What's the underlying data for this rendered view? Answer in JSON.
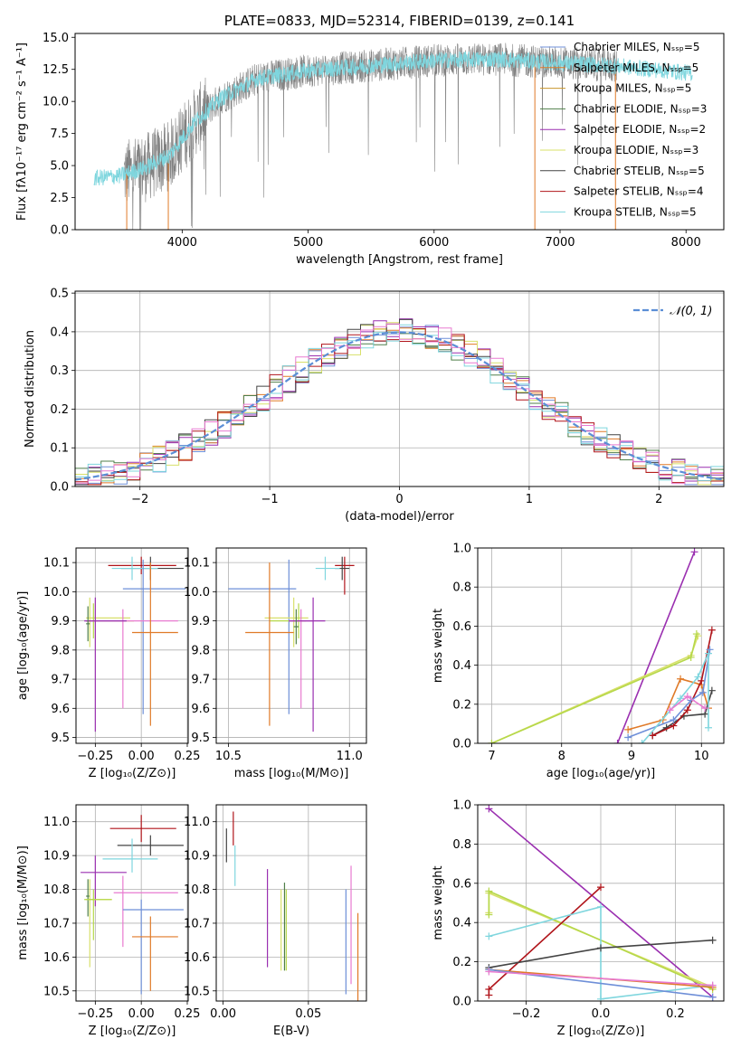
{
  "colors": {
    "Chabrier MILES": "#6e8fd8",
    "Salpeter MILES": "#e07a28",
    "Kroupa MILES": "#c9962b",
    "Chabrier ELODIE": "#4f7f4a",
    "Salpeter ELODIE": "#9a2fb0",
    "Kroupa ELODIE": "#d8e06a",
    "Chabrier STELIB": "#444444",
    "Salpeter STELIB": "#b0141a",
    "Kroupa STELIB": "#7fd6de",
    "extra_pink": "#e87ad0",
    "extra_lime": "#b6d84a",
    "gray": "#808080",
    "normal": "#5b8ed6"
  },
  "chart_data": [
    {
      "id": "spectrum",
      "type": "line",
      "title": "PLATE=0833, MJD=52314, FIBERID=0139, z=0.141",
      "xlabel": "wavelength [Angstrom, rest frame]",
      "ylabel": "Flux [fλ10⁻¹⁷ erg cm⁻² s⁻¹ A⁻¹]",
      "xlim": [
        3150,
        8300
      ],
      "ylim": [
        0,
        15.3
      ],
      "xticks": [
        4000,
        5000,
        6000,
        7000,
        8000
      ],
      "yticks": [
        0.0,
        2.5,
        5.0,
        7.5,
        10.0,
        12.5,
        15.0
      ],
      "grid": false,
      "legend": [
        "Chabrier MILES, Nₛₛₚ=5",
        "Salpeter MILES, Nₛₛₚ=5",
        "Kroupa MILES, Nₛₛₚ=5",
        "Chabrier ELODIE, Nₛₛₚ=3",
        "Salpeter ELODIE, Nₛₛₚ=2",
        "Kroupa ELODIE, Nₛₛₚ=3",
        "Chabrier STELIB, Nₛₛₚ=5",
        "Salpeter STELIB, Nₛₛₚ=4",
        "Kroupa STELIB, Nₛₛₚ=5"
      ],
      "legend_position": "right",
      "continuum": {
        "x": [
          3300,
          3500,
          3700,
          3900,
          4100,
          4300,
          4600,
          5000,
          5500,
          6000,
          6500,
          7000,
          7400,
          8050
        ],
        "y": [
          4.0,
          4.2,
          4.8,
          5.8,
          8.4,
          10.2,
          11.8,
          12.4,
          12.8,
          13.2,
          13.3,
          13.0,
          12.8,
          12.2
        ]
      },
      "model_range": [
        3300,
        8050
      ],
      "observed_range": [
        3540,
        7450
      ]
    },
    {
      "id": "residuals",
      "type": "histogram",
      "xlabel": "(data-model)/error",
      "ylabel": "Normed distribution",
      "xlim": [
        -2.5,
        2.5
      ],
      "ylim": [
        0,
        0.505
      ],
      "xticks": [
        -2,
        -1,
        0,
        1,
        2
      ],
      "xtick_labels": [
        "−2",
        "−1",
        "0",
        "1",
        "2"
      ],
      "yticks": [
        0.0,
        0.1,
        0.2,
        0.3,
        0.4,
        0.5
      ],
      "grid": true,
      "bin_width": 0.1,
      "legend": "𝒩(0, 1)",
      "legend_position": "top-right",
      "normal": {
        "mean": 0,
        "sigma": 1
      }
    },
    {
      "id": "age_vs_Z",
      "type": "errorbar",
      "xlabel": "Z [log₁₀(Z/Z⊙)]",
      "ylabel": "age  [log₁₀(age/yr)]",
      "xlim": [
        -0.355,
        0.255
      ],
      "ylim": [
        9.48,
        10.15
      ],
      "xticks": [
        -0.25,
        0.0,
        0.25
      ],
      "xtick_labels": [
        "−0.25",
        "0.00",
        "0.25"
      ],
      "yticks": [
        9.5,
        9.6,
        9.7,
        9.8,
        9.9,
        10.0,
        10.1
      ],
      "grid": true,
      "points": [
        {
          "model": "Salpeter STELIB",
          "x": 0.0,
          "xerr": [
            0.18,
            0.19
          ],
          "y": 10.09,
          "yerr": [
            0.03,
            0.03
          ]
        },
        {
          "model": "Chabrier STELIB",
          "x": 0.05,
          "xerr": [
            0.16,
            0.18
          ],
          "y": 10.08,
          "yerr": [
            0.04,
            0.04
          ]
        },
        {
          "model": "Kroupa STELIB",
          "x": -0.05,
          "xerr": [
            0.11,
            0.14
          ],
          "y": 10.08,
          "yerr": [
            0.04,
            0.04
          ]
        },
        {
          "model": "Chabrier MILES",
          "x": 0.01,
          "xerr": [
            0.11,
            0.23
          ],
          "y": 10.01,
          "yerr": [
            0.43,
            0.1
          ]
        },
        {
          "model": "Kroupa ELODIE",
          "x": -0.28,
          "xerr": [
            0.02,
            0.22
          ],
          "y": 9.91,
          "yerr": [
            0.1,
            0.07
          ]
        },
        {
          "model": "extra_lime",
          "x": -0.26,
          "xerr": [
            0.04,
            0.22
          ],
          "y": 9.9,
          "yerr": [
            0.06,
            0.06
          ]
        },
        {
          "model": "extra_pink",
          "x": -0.1,
          "xerr": [
            0.2,
            0.3
          ],
          "y": 9.9,
          "yerr": [
            0.3,
            0.04
          ]
        },
        {
          "model": "Salpeter ELODIE",
          "x": -0.25,
          "xerr": [
            0.06,
            0.17
          ],
          "y": 9.9,
          "yerr": [
            0.38,
            0.08
          ]
        },
        {
          "model": "Chabrier ELODIE",
          "x": -0.29,
          "xerr": [
            0.01,
            0.01
          ],
          "y": 9.89,
          "yerr": [
            0.06,
            0.06
          ]
        },
        {
          "model": "Salpeter MILES",
          "x": 0.05,
          "xerr": [
            0.1,
            0.15
          ],
          "y": 9.86,
          "yerr": [
            0.32,
            0.24
          ]
        }
      ]
    },
    {
      "id": "age_vs_mass",
      "type": "errorbar",
      "xlabel": "mass [log₁₀(M/M⊙)]",
      "ylabel": "",
      "xlim": [
        10.45,
        11.07
      ],
      "ylim": [
        9.48,
        10.15
      ],
      "xticks": [
        10.5,
        11.0
      ],
      "xtick_labels": [
        "10.5",
        "11.0"
      ],
      "yticks": [
        9.5,
        9.6,
        9.7,
        9.8,
        9.9,
        10.0,
        10.1
      ],
      "grid": true,
      "points": [
        {
          "model": "Salpeter STELIB",
          "x": 10.98,
          "xerr": [
            0.04,
            0.04
          ],
          "y": 10.09,
          "yerr": [
            0.1,
            0.03
          ]
        },
        {
          "model": "Chabrier STELIB",
          "x": 10.97,
          "xerr": [
            0.03,
            0.03
          ],
          "y": 10.08,
          "yerr": [
            0.04,
            0.04
          ]
        },
        {
          "model": "Kroupa STELIB",
          "x": 10.9,
          "xerr": [
            0.04,
            0.06
          ],
          "y": 10.08,
          "yerr": [
            0.04,
            0.04
          ]
        },
        {
          "model": "Chabrier MILES",
          "x": 10.75,
          "xerr": [
            0.25,
            0.03
          ],
          "y": 10.01,
          "yerr": [
            0.43,
            0.1
          ]
        },
        {
          "model": "Kroupa ELODIE",
          "x": 10.77,
          "xerr": [
            0.12,
            0.06
          ],
          "y": 9.91,
          "yerr": [
            0.1,
            0.07
          ]
        },
        {
          "model": "extra_lime",
          "x": 10.79,
          "xerr": [
            0.12,
            0.03
          ],
          "y": 9.9,
          "yerr": [
            0.06,
            0.06
          ]
        },
        {
          "model": "extra_pink",
          "x": 10.8,
          "xerr": [
            0.05,
            0.05
          ],
          "y": 9.9,
          "yerr": [
            0.3,
            0.04
          ]
        },
        {
          "model": "Salpeter ELODIE",
          "x": 10.85,
          "xerr": [
            0.1,
            0.05
          ],
          "y": 9.9,
          "yerr": [
            0.38,
            0.08
          ]
        },
        {
          "model": "Chabrier ELODIE",
          "x": 10.78,
          "xerr": [
            0.01,
            0.01
          ],
          "y": 9.88,
          "yerr": [
            0.06,
            0.06
          ]
        },
        {
          "model": "Salpeter MILES",
          "x": 10.67,
          "xerr": [
            0.1,
            0.1
          ],
          "y": 9.86,
          "yerr": [
            0.32,
            0.24
          ]
        }
      ]
    },
    {
      "id": "weight_vs_age",
      "type": "line",
      "xlabel": "age  [log₁₀(age/yr)]",
      "ylabel": "mass weight",
      "xlim": [
        6.8,
        10.32
      ],
      "ylim": [
        0,
        1.0
      ],
      "xticks": [
        7,
        8,
        9,
        10
      ],
      "yticks": [
        0.0,
        0.2,
        0.4,
        0.6,
        0.8,
        1.0
      ],
      "grid": true,
      "series": [
        {
          "model": "Salpeter ELODIE",
          "x": [
            8.8,
            9.9
          ],
          "y": [
            0.0,
            0.98
          ]
        },
        {
          "model": "Kroupa ELODIE",
          "x": [
            7.0,
            9.85,
            9.95
          ],
          "y": [
            0.0,
            0.45,
            0.55
          ]
        },
        {
          "model": "extra_lime",
          "x": [
            7.0,
            9.85,
            9.93
          ],
          "y": [
            0.0,
            0.44,
            0.56
          ]
        },
        {
          "model": "Salpeter MILES",
          "x": [
            8.95,
            9.45,
            9.7,
            10.0,
            10.1
          ],
          "y": [
            0.07,
            0.12,
            0.33,
            0.3,
            0.18
          ]
        },
        {
          "model": "Chabrier STELIB",
          "x": [
            9.3,
            9.5,
            9.75,
            10.05,
            10.15
          ],
          "y": [
            0.04,
            0.08,
            0.14,
            0.15,
            0.27
          ]
        },
        {
          "model": "Salpeter STELIB",
          "x": [
            9.3,
            9.6,
            9.8,
            10.0,
            10.15
          ],
          "y": [
            0.04,
            0.09,
            0.17,
            0.32,
            0.58
          ]
        },
        {
          "model": "Chabrier MILES",
          "x": [
            8.95,
            9.6,
            9.85,
            10.02,
            10.12
          ],
          "y": [
            0.03,
            0.12,
            0.22,
            0.26,
            0.48
          ]
        },
        {
          "model": "Kroupa STELIB",
          "x": [
            9.15,
            9.7,
            9.95,
            10.1,
            10.1
          ],
          "y": [
            0.0,
            0.23,
            0.34,
            0.46,
            0.08
          ]
        },
        {
          "model": "extra_pink",
          "x": [
            9.55,
            9.8,
            10.05
          ],
          "y": [
            0.17,
            0.24,
            0.18
          ]
        }
      ]
    },
    {
      "id": "mass_vs_Z",
      "type": "errorbar",
      "xlabel": "Z [log₁₀(Z/Z⊙)]",
      "ylabel": "mass [log₁₀(M/M⊙)]",
      "xlim": [
        -0.355,
        0.255
      ],
      "ylim": [
        10.47,
        11.05
      ],
      "xticks": [
        -0.25,
        0.0,
        0.25
      ],
      "xtick_labels": [
        "−0.25",
        "0.00",
        "0.25"
      ],
      "yticks": [
        10.5,
        10.6,
        10.7,
        10.8,
        10.9,
        11.0
      ],
      "grid": true,
      "points": [
        {
          "model": "Salpeter STELIB",
          "x": -0.0,
          "xerr": [
            0.17,
            0.19
          ],
          "y": 10.98,
          "yerr": [
            0.04,
            0.04
          ]
        },
        {
          "model": "Chabrier STELIB",
          "x": 0.05,
          "xerr": [
            0.18,
            0.18
          ],
          "y": 10.93,
          "yerr": [
            0.03,
            0.03
          ]
        },
        {
          "model": "Kroupa STELIB",
          "x": -0.05,
          "xerr": [
            0.16,
            0.14
          ],
          "y": 10.89,
          "yerr": [
            0.04,
            0.06
          ]
        },
        {
          "model": "Salpeter ELODIE",
          "x": -0.25,
          "xerr": [
            0.08,
            0.17
          ],
          "y": 10.85,
          "yerr": [
            0.1,
            0.05
          ]
        },
        {
          "model": "extra_pink",
          "x": -0.1,
          "xerr": [
            0.05,
            0.3
          ],
          "y": 10.79,
          "yerr": [
            0.16,
            0.05
          ]
        },
        {
          "model": "Chabrier ELODIE",
          "x": -0.29,
          "xerr": [
            0.01,
            0.01
          ],
          "y": 10.78,
          "yerr": [
            0.06,
            0.05
          ]
        },
        {
          "model": "Kroupa ELODIE",
          "x": -0.28,
          "xerr": [
            0.02,
            0.12
          ],
          "y": 10.77,
          "yerr": [
            0.2,
            0.06
          ]
        },
        {
          "model": "extra_lime",
          "x": -0.26,
          "xerr": [
            0.05,
            0.1
          ],
          "y": 10.77,
          "yerr": [
            0.12,
            0.03
          ]
        },
        {
          "model": "Chabrier MILES",
          "x": 0.0,
          "xerr": [
            0.1,
            0.23
          ],
          "y": 10.74,
          "yerr": [
            0.25,
            0.03
          ]
        },
        {
          "model": "Salpeter MILES",
          "x": 0.05,
          "xerr": [
            0.1,
            0.15
          ],
          "y": 10.66,
          "yerr": [
            0.16,
            0.06
          ]
        }
      ]
    },
    {
      "id": "mass_vs_ebv",
      "type": "errorbar",
      "xlabel": "E(B-V)",
      "ylabel": "",
      "xlim": [
        -0.004,
        0.084
      ],
      "ylim": [
        10.47,
        11.05
      ],
      "xticks": [
        0.0,
        0.05
      ],
      "xtick_labels": [
        "0.00",
        "0.05"
      ],
      "yticks": [
        10.5,
        10.6,
        10.7,
        10.8,
        10.9,
        11.0
      ],
      "grid": true,
      "points": [
        {
          "model": "Salpeter STELIB",
          "x": 0.006,
          "xerr": [
            0,
            0
          ],
          "y": 10.98,
          "yerr": [
            0.05,
            0.05
          ]
        },
        {
          "model": "Chabrier STELIB",
          "x": 0.002,
          "xerr": [
            0,
            0
          ],
          "y": 10.93,
          "yerr": [
            0.05,
            0.05
          ]
        },
        {
          "model": "Kroupa STELIB",
          "x": 0.007,
          "xerr": [
            0,
            0
          ],
          "y": 10.88,
          "yerr": [
            0.07,
            0.05
          ]
        },
        {
          "model": "Salpeter ELODIE",
          "x": 0.026,
          "xerr": [
            0,
            0
          ],
          "y": 10.73,
          "yerr": [
            0.16,
            0.13
          ]
        },
        {
          "model": "Kroupa ELODIE",
          "x": 0.034,
          "xerr": [
            0,
            0
          ],
          "y": 10.7,
          "yerr": [
            0.14,
            0.1
          ]
        },
        {
          "model": "Chabrier ELODIE",
          "x": 0.036,
          "xerr": [
            0,
            0
          ],
          "y": 10.68,
          "yerr": [
            0.12,
            0.14
          ]
        },
        {
          "model": "extra_lime",
          "x": 0.037,
          "xerr": [
            0,
            0
          ],
          "y": 10.7,
          "yerr": [
            0.14,
            0.1
          ]
        },
        {
          "model": "Chabrier MILES",
          "x": 0.072,
          "xerr": [
            0,
            0
          ],
          "y": 10.65,
          "yerr": [
            0.16,
            0.15
          ]
        },
        {
          "model": "extra_pink",
          "x": 0.075,
          "xerr": [
            0,
            0
          ],
          "y": 10.7,
          "yerr": [
            0.18,
            0.17
          ]
        },
        {
          "model": "Salpeter MILES",
          "x": 0.079,
          "xerr": [
            0,
            0
          ],
          "y": 10.6,
          "yerr": [
            0.13,
            0.13
          ]
        }
      ]
    },
    {
      "id": "weight_vs_Z",
      "type": "line",
      "xlabel": "Z [log₁₀(Z/Z⊙)]",
      "ylabel": "mass weight",
      "xlim": [
        -0.33,
        0.33
      ],
      "ylim": [
        0,
        1.0
      ],
      "xticks": [
        -0.2,
        0.0,
        0.2
      ],
      "xtick_labels": [
        "−0.2",
        "0.0",
        "0.2"
      ],
      "yticks": [
        0.0,
        0.2,
        0.4,
        0.6,
        0.8,
        1.0
      ],
      "grid": true,
      "series": [
        {
          "model": "Salpeter ELODIE",
          "x": [
            -0.3,
            0.3
          ],
          "y": [
            0.98,
            0.02
          ]
        },
        {
          "model": "Kroupa ELODIE",
          "x": [
            -0.3,
            -0.3,
            0.3
          ],
          "y": [
            0.45,
            0.55,
            0.07
          ]
        },
        {
          "model": "extra_lime",
          "x": [
            -0.3,
            -0.3,
            0.3
          ],
          "y": [
            0.44,
            0.56,
            0.06
          ]
        },
        {
          "model": "Salpeter STELIB",
          "x": [
            -0.3,
            -0.3,
            0.0
          ],
          "y": [
            0.03,
            0.06,
            0.58
          ]
        },
        {
          "model": "Kroupa STELIB",
          "x": [
            -0.3,
            0.0,
            0.0,
            0.3
          ],
          "y": [
            0.33,
            0.48,
            0.01,
            0.08
          ]
        },
        {
          "model": "Chabrier STELIB",
          "x": [
            -0.3,
            0.0,
            0.3
          ],
          "y": [
            0.17,
            0.27,
            0.31
          ]
        },
        {
          "model": "Salpeter MILES",
          "x": [
            -0.3,
            0.3
          ],
          "y": [
            0.16,
            0.07
          ]
        },
        {
          "model": "Chabrier MILES",
          "x": [
            -0.3,
            0.3
          ],
          "y": [
            0.16,
            0.02
          ]
        },
        {
          "model": "extra_pink",
          "x": [
            -0.3,
            0.3
          ],
          "y": [
            0.15,
            0.08
          ]
        }
      ]
    }
  ]
}
